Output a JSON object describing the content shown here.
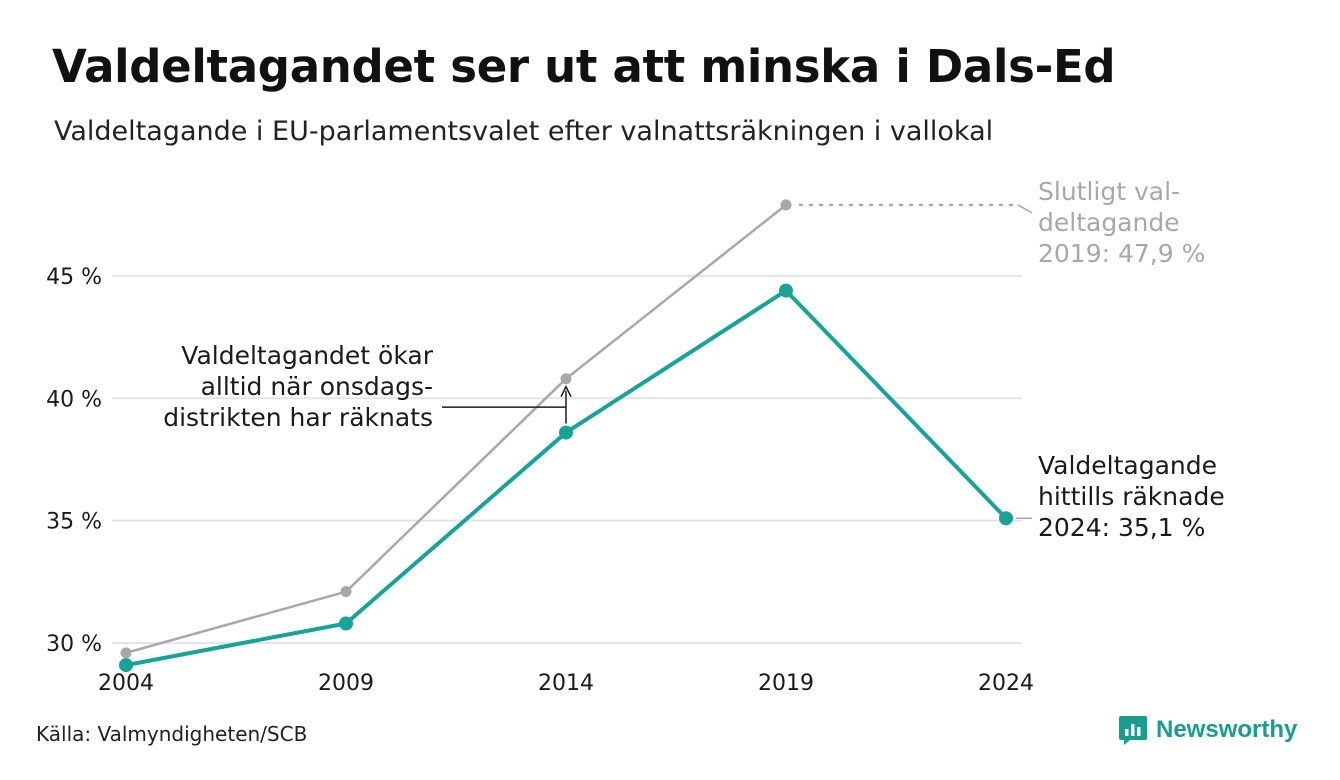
{
  "title": "Valdeltagandet ser ut att minska i Dals-Ed",
  "subtitle": "Valdeltagande i EU-parlamentsvalet efter valnattsräkningen i vallokal",
  "source": "Källa: Valmyndigheten/SCB",
  "logo": {
    "text": "Newsworthy",
    "icon": "newsworthy-logo-icon"
  },
  "colors": {
    "accent": "#17a398",
    "final": "#a8a8a8",
    "grid": "#e3e3e3",
    "text": "#1a1a1a"
  },
  "chart_data": {
    "type": "line",
    "x": [
      2004,
      2009,
      2014,
      2019,
      2024
    ],
    "xtick_labels": [
      "2004",
      "2009",
      "2014",
      "2019",
      "2024"
    ],
    "ylim": [
      28.9,
      49
    ],
    "yticks": [
      30,
      35,
      40,
      45
    ],
    "ytick_labels": [
      "30 %",
      "35 %",
      "40 %",
      "45 %"
    ],
    "grid": true,
    "series": [
      {
        "key": "final",
        "color": "#a8a8a8",
        "values": [
          29.6,
          32.1,
          40.8,
          47.9,
          null
        ]
      },
      {
        "key": "election_night",
        "color": "#17a398",
        "values": [
          29.1,
          30.8,
          38.6,
          44.4,
          35.1
        ]
      }
    ],
    "annotations": [
      {
        "key": "final_2019",
        "color": "#a8a8a8",
        "lines": [
          "Slutligt val-",
          "deltagande",
          "2019: 47,9 %"
        ]
      },
      {
        "key": "counted_2024",
        "color": "#1a1a1a",
        "lines": [
          "Valdeltagande",
          "hittills räknade",
          "2024: 35,1 %"
        ]
      },
      {
        "key": "wednesday_note",
        "color": "#1a1a1a",
        "lines": [
          "Valdeltagandet ökar",
          "alltid när onsdags-",
          "distrikten har räknats"
        ]
      }
    ]
  }
}
